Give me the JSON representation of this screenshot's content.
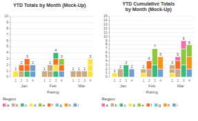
{
  "chart_data": [
    {
      "type": "bar",
      "stacked": true,
      "title": "YTD Totals by Month (Mock-Up)",
      "xlabel": "Rating",
      "categories": [
        "Jan",
        "Feb",
        "Mar"
      ],
      "groups": [
        "1",
        "2",
        "3",
        "4"
      ],
      "stacks": [
        [
          {
            "values": [
              1
            ],
            "colors": [
              "#f7e347"
            ]
          },
          {
            "values": [
              1,
              1
            ],
            "colors": [
              "#c9a882",
              "#f36f21"
            ]
          },
          {
            "values": [
              1,
              1,
              1
            ],
            "colors": [
              "#3cb878",
              "#f36f21",
              "#f36f21"
            ]
          },
          {
            "values": [
              1,
              1
            ],
            "colors": [
              "#6d9ecc",
              "#6d9ecc"
            ]
          }
        ],
        [
          {
            "values": [
              1
            ],
            "colors": [
              "#c9a882"
            ]
          },
          {
            "values": [
              1,
              1
            ],
            "colors": [
              "#c9a882",
              "#c9a882"
            ]
          },
          {
            "values": [
              1,
              1,
              1,
              1
            ],
            "colors": [
              "#3cb878",
              "#f7e347",
              "#f36f21",
              "#3cb878"
            ]
          },
          {
            "values": [
              1,
              1,
              1
            ],
            "colors": [
              "#6d9ecc",
              "#f36f21",
              "#8dc63f"
            ]
          }
        ],
        [
          {
            "values": [
              1
            ],
            "colors": [
              "#c9a882"
            ]
          },
          {
            "values": [
              1
            ],
            "colors": [
              "#c9a882"
            ]
          },
          {
            "values": [
              1
            ],
            "colors": [
              "#c9a882"
            ]
          },
          {
            "values": [
              1,
              1,
              1
            ],
            "colors": [
              "#f7e347",
              "#f7e347",
              "#f7e347"
            ]
          }
        ]
      ],
      "totals": [
        [
          1,
          2,
          3,
          2
        ],
        [
          1,
          2,
          4,
          3
        ],
        [
          1,
          1,
          1,
          3
        ]
      ],
      "ylim": [
        0,
        10
      ],
      "yticks": [
        0,
        1,
        2,
        3,
        4,
        5,
        6,
        7,
        8,
        9,
        10
      ],
      "grid": true,
      "legend": "bottom",
      "legend_title": "Region",
      "legend_items": [
        {
          "name": "a",
          "color": "#f06eaa"
        },
        {
          "name": "b",
          "color": "#c9a882"
        },
        {
          "name": "c",
          "color": "#3cb878"
        },
        {
          "name": "d",
          "color": "#f7e347"
        },
        {
          "name": "e",
          "color": "#8dc63f"
        },
        {
          "name": "f",
          "color": "#f36f21"
        },
        {
          "name": "g",
          "color": "#7bc4c4"
        },
        {
          "name": "h",
          "color": "#f7941d"
        },
        {
          "name": "i",
          "color": "#6d9ecc"
        }
      ]
    },
    {
      "type": "bar",
      "stacked": true,
      "title": "YTD Cumulative Totals by Month (Mock-Up)",
      "xlabel": "Rating",
      "categories": [
        "Jan",
        "Feb",
        "Mar"
      ],
      "groups": [
        "1",
        "2",
        "3",
        "4"
      ],
      "stacks": [
        [
          {
            "values": [
              1
            ],
            "colors": [
              "#f7e347"
            ]
          },
          {
            "values": [
              2
            ],
            "colors": [
              "#c9a882"
            ]
          },
          {
            "values": [
              3
            ],
            "colors": [
              "#3cb878"
            ]
          },
          {
            "values": [
              2
            ],
            "colors": [
              "#6d9ecc"
            ]
          }
        ],
        [
          {
            "values": [
              1,
              1
            ],
            "colors": [
              "#f7e347",
              "#c9a882"
            ]
          },
          {
            "values": [
              2,
              2
            ],
            "colors": [
              "#c9a882",
              "#f36f21"
            ]
          },
          {
            "values": [
              3,
              4
            ],
            "colors": [
              "#3cb878",
              "#8dc63f"
            ]
          },
          {
            "values": [
              2,
              3
            ],
            "colors": [
              "#6d9ecc",
              "#f7941d"
            ]
          }
        ],
        [
          {
            "values": [
              1,
              1,
              1
            ],
            "colors": [
              "#f7e347",
              "#c9a882",
              "#c9a882"
            ]
          },
          {
            "values": [
              2,
              2,
              1
            ],
            "colors": [
              "#c9a882",
              "#f36f21",
              "#f06eaa"
            ]
          },
          {
            "values": [
              3,
              4,
              2
            ],
            "colors": [
              "#3cb878",
              "#8dc63f",
              "#f06eaa"
            ]
          },
          {
            "values": [
              2,
              3,
              3
            ],
            "colors": [
              "#6d9ecc",
              "#f7941d",
              "#8dc63f"
            ]
          }
        ]
      ],
      "totals": [
        [
          1,
          2,
          3,
          2
        ],
        [
          2,
          4,
          7,
          5
        ],
        [
          3,
          5,
          9,
          8
        ]
      ],
      "ylim": [
        0,
        15
      ],
      "yticks": [
        0,
        1,
        2,
        3,
        4,
        5,
        6,
        7,
        8,
        9,
        10,
        11,
        12,
        13,
        14,
        15
      ],
      "grid": true,
      "legend": "bottom",
      "legend_title": "Region",
      "legend_items": [
        {
          "name": "a",
          "color": "#f06eaa"
        },
        {
          "name": "b",
          "color": "#c9a882"
        },
        {
          "name": "c",
          "color": "#3cb878"
        },
        {
          "name": "d",
          "color": "#f7e347"
        },
        {
          "name": "e",
          "color": "#8dc63f"
        },
        {
          "name": "f",
          "color": "#f36f21"
        },
        {
          "name": "g",
          "color": "#7bc4c4"
        },
        {
          "name": "h",
          "color": "#f7941d"
        },
        {
          "name": "i",
          "color": "#6d9ecc"
        }
      ]
    }
  ]
}
